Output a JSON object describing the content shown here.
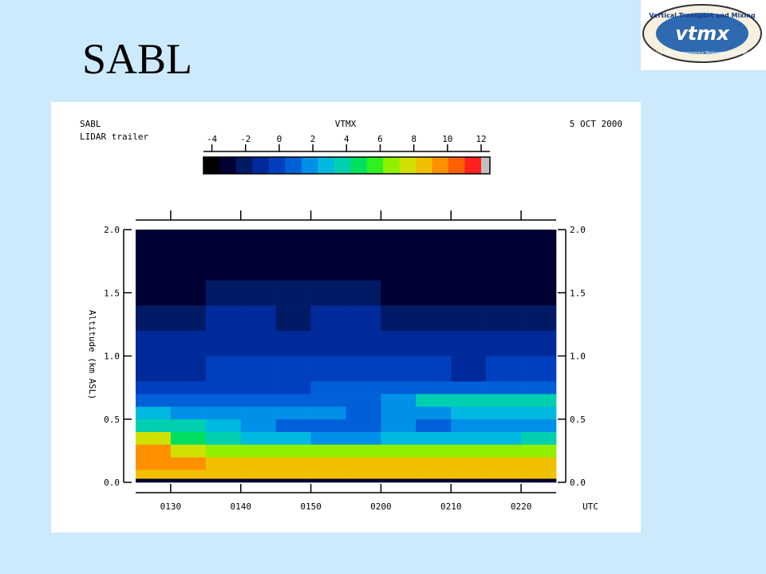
{
  "slide_title": "SABL",
  "logo": {
    "top_text": "Vertical Transport and Mixing",
    "name": "vtmx",
    "bottom_text": "U.S. DOE Environmental Meteorology Program"
  },
  "chart_data": {
    "type": "heatmap",
    "title": "SABL",
    "subtitle": "LIDAR trailer",
    "center_label": "VTMX",
    "date": "5 OCT 2000",
    "xlabel": "UTC",
    "ylabel": "Altitude (km ASL)",
    "xlim": [
      85,
      145
    ],
    "xticks": [
      {
        "value": 90,
        "label": "0130"
      },
      {
        "value": 100,
        "label": "0140"
      },
      {
        "value": 110,
        "label": "0150"
      },
      {
        "value": 120,
        "label": "0200"
      },
      {
        "value": 130,
        "label": "0210"
      },
      {
        "value": 140,
        "label": "0220"
      }
    ],
    "ylim": [
      0,
      2
    ],
    "yticks": [
      {
        "value": 0,
        "label": "0.0"
      },
      0.5,
      {
        "value": 1,
        "label": "1.0"
      },
      1.5,
      {
        "value": 2,
        "label": "2.0"
      }
    ],
    "x_edges": [
      85,
      90,
      95,
      100,
      105,
      110,
      115,
      120,
      125,
      130,
      135,
      140,
      145
    ],
    "y_edges": [
      0,
      0.03,
      0.1,
      0.2,
      0.3,
      0.4,
      0.5,
      0.6,
      0.7,
      0.8,
      1.0,
      1.2,
      1.4,
      1.6,
      1.8,
      2.0
    ],
    "values": [
      [
        -3,
        -3,
        -3,
        -3,
        -3,
        -3,
        -3,
        -3,
        -3,
        -3,
        -3,
        -3
      ],
      [
        9,
        9,
        9,
        9,
        9,
        9,
        9,
        9,
        9,
        9,
        9,
        9
      ],
      [
        9.5,
        9.5,
        9,
        9,
        9,
        9,
        9,
        9,
        9,
        9,
        9,
        9
      ],
      [
        10,
        8,
        7,
        7,
        7,
        7,
        7,
        7,
        7,
        7,
        7,
        7
      ],
      [
        8,
        5,
        4,
        3,
        3,
        2,
        2,
        3,
        3,
        3,
        3,
        4
      ],
      [
        4,
        4,
        3,
        2,
        1,
        1,
        1,
        2,
        1,
        2,
        2,
        2
      ],
      [
        3,
        2,
        2,
        2,
        2,
        2,
        1,
        2,
        2,
        3,
        3,
        3
      ],
      [
        1,
        1,
        1,
        1,
        1,
        1,
        1,
        2,
        4,
        4,
        4,
        4
      ],
      [
        0,
        0,
        0,
        0,
        0,
        1,
        1,
        1,
        1,
        1,
        1,
        1
      ],
      [
        -1,
        -1,
        0,
        0,
        0,
        0,
        0,
        0,
        0,
        -1,
        0,
        0
      ],
      [
        -1,
        -1,
        -1,
        -1,
        -1,
        -1,
        -1,
        -1,
        -1,
        -1,
        -1,
        -1
      ],
      [
        -2,
        -2,
        -1,
        -1,
        -2,
        -1,
        -1,
        -2,
        -2,
        -2,
        -2,
        -2
      ],
      [
        -3,
        -3,
        -2,
        -2,
        -2,
        -2,
        -2,
        -3,
        -3,
        -3,
        -3,
        -3
      ],
      [
        -3,
        -3,
        -3,
        -3,
        -3,
        -3,
        -3,
        -3,
        -3,
        -3,
        -3,
        -3
      ],
      [
        -3.5,
        -3.5,
        -3.5,
        -3.5,
        -3.5,
        -3.5,
        -3.5,
        -3.5,
        -3.5,
        -3.5,
        -3.5,
        -3.5
      ]
    ],
    "colorbar": {
      "lim": [
        -4.5,
        12
      ],
      "ticks": [
        -4,
        -2,
        0,
        2,
        4,
        6,
        8,
        10,
        12
      ],
      "colors": [
        "#000000",
        "#000033",
        "#001a66",
        "#002a99",
        "#0040c0",
        "#0060d8",
        "#0090e8",
        "#00b8e0",
        "#00d0b0",
        "#00e060",
        "#30f020",
        "#90f000",
        "#d0e000",
        "#f0c000",
        "#ff9000",
        "#ff6000",
        "#ff2020"
      ],
      "overflow_color": "#c0c0c0"
    }
  }
}
